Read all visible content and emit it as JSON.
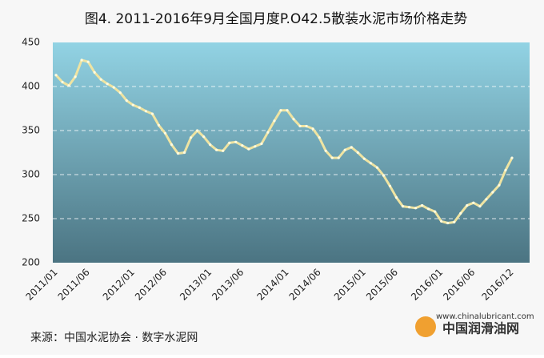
{
  "chart_data": {
    "type": "line",
    "title": "图4. 2011-2016年9月全国月度P.O42.5散装水泥市场价格走势",
    "categories": [
      "2011/01",
      null,
      null,
      null,
      null,
      "2011/06",
      null,
      null,
      null,
      null,
      null,
      null,
      "2012/01",
      null,
      null,
      null,
      null,
      "2012/06",
      null,
      null,
      null,
      null,
      null,
      null,
      "2013/01",
      null,
      null,
      null,
      null,
      "2013/06",
      null,
      null,
      null,
      null,
      null,
      null,
      "2014/01",
      null,
      null,
      null,
      null,
      "2014/06",
      null,
      null,
      null,
      null,
      null,
      null,
      "2015/01",
      null,
      null,
      null,
      null,
      "2015/06",
      null,
      null,
      null,
      null,
      null,
      null,
      "2016/01",
      null,
      null,
      null,
      null,
      "2016/06",
      null,
      null,
      null,
      null,
      null,
      "2016/12"
    ],
    "values": [
      413,
      405,
      401,
      411,
      430,
      428,
      416,
      408,
      403,
      399,
      393,
      384,
      379,
      376,
      372,
      369,
      356,
      347,
      334,
      324,
      325,
      342,
      350,
      343,
      334,
      328,
      327,
      336,
      337,
      333,
      329,
      332,
      335,
      348,
      361,
      373,
      373,
      363,
      355,
      355,
      352,
      342,
      327,
      319,
      319,
      328,
      331,
      325,
      318,
      313,
      308,
      299,
      287,
      274,
      264,
      263,
      262,
      265,
      261,
      258,
      247,
      245,
      246,
      256,
      265,
      268,
      264,
      272,
      280,
      288,
      305,
      319
    ],
    "color": "#efe4a2",
    "ylim": [
      200,
      450
    ],
    "yticks": [
      200,
      250,
      300,
      350,
      400,
      450
    ],
    "grid": true,
    "source": "来源：中国水泥协会 · 数字水泥网",
    "watermark_url": "www.chinalubricant.com",
    "watermark_name": "中国润滑油网"
  }
}
